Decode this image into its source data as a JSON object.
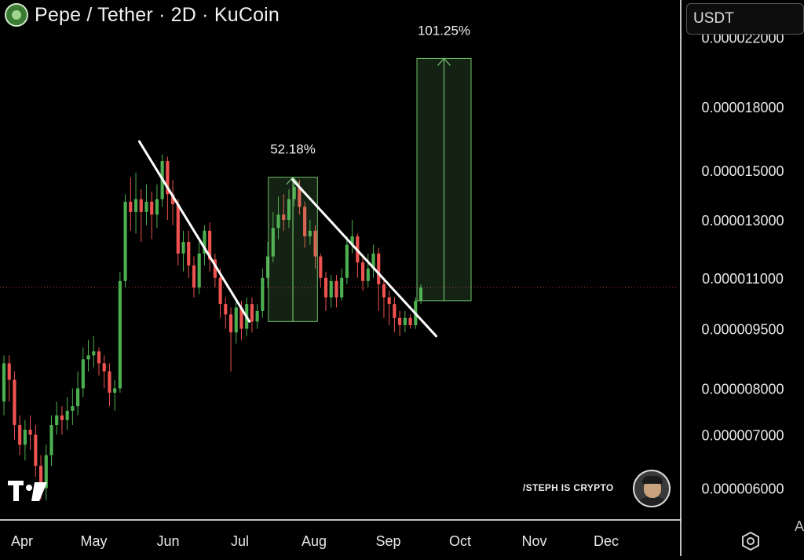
{
  "header": {
    "title": "Pepe / Tether · 2D · KuCoin",
    "logo_icon": "pepe-coin-icon"
  },
  "currency_selector": {
    "value": "USDT"
  },
  "watermark": {
    "credit": "/STEPH IS CRYPTO",
    "avatar_icon": "author-avatar-icon",
    "platform_logo": "tradingview-logo-icon"
  },
  "settings_icon": "hexagon-settings-icon",
  "cutoff_text": "A",
  "chart_data": {
    "type": "candlestick",
    "y_scale": "log",
    "ylim": [
      5.5e-06,
      2.45e-05
    ],
    "y_ticks": [
      "0.000022000",
      "0.000018000",
      "0.000015000",
      "0.000013000",
      "0.000011000",
      "0.000009500",
      "0.000008000",
      "0.000007000",
      "0.000006000"
    ],
    "x_ticks": [
      "Apr",
      "May",
      "Jun",
      "Jul",
      "Aug",
      "Sep",
      "Oct",
      "Nov",
      "Dec"
    ],
    "current_price": 1.07e-05,
    "colors": {
      "up": "#4caf50",
      "down": "#ef5350",
      "background": "#000000",
      "trendline": "#ffffff",
      "measure": "#6fbf6a",
      "price_line": "#c0392b"
    },
    "candles": [
      [
        7.7e-06,
        8.6e-06,
        7.4e-06,
        8.8e-06
      ],
      [
        8.6e-06,
        8.2e-06,
        7.7e-06,
        8.8e-06
      ],
      [
        8.2e-06,
        7.2e-06,
        6.9e-06,
        8.4e-06
      ],
      [
        7.2e-06,
        6.8e-06,
        6.6e-06,
        7.4e-06
      ],
      [
        6.8e-06,
        7.1e-06,
        6.5e-06,
        7.3e-06
      ],
      [
        7.1e-06,
        7e-06,
        6.7e-06,
        7.4e-06
      ],
      [
        7e-06,
        6.4e-06,
        6.2e-06,
        7.2e-06
      ],
      [
        6.4e-06,
        6e-06,
        5.8e-06,
        6.6e-06
      ],
      [
        6e-06,
        6.6e-06,
        5.8e-06,
        6.8e-06
      ],
      [
        6.6e-06,
        7.2e-06,
        6.4e-06,
        7.4e-06
      ],
      [
        7.2e-06,
        7.4e-06,
        7e-06,
        7.7e-06
      ],
      [
        7.4e-06,
        7.3e-06,
        7e-06,
        7.6e-06
      ],
      [
        7.3e-06,
        7.5e-06,
        7.1e-06,
        7.8e-06
      ],
      [
        7.5e-06,
        7.6e-06,
        7.2e-06,
        8e-06
      ],
      [
        7.6e-06,
        8e-06,
        7.4e-06,
        8.4e-06
      ],
      [
        8e-06,
        8.7e-06,
        7.8e-06,
        9e-06
      ],
      [
        8.7e-06,
        8.8e-06,
        8.4e-06,
        9.2e-06
      ],
      [
        8.8e-06,
        8.9e-06,
        8.5e-06,
        9.3e-06
      ],
      [
        8.9e-06,
        8.6e-06,
        8.3e-06,
        9e-06
      ],
      [
        8.6e-06,
        8.4e-06,
        8e-06,
        8.8e-06
      ],
      [
        8.4e-06,
        7.9e-06,
        7.6e-06,
        8.6e-06
      ],
      [
        7.9e-06,
        8e-06,
        7.5e-06,
        8.2e-06
      ],
      [
        8e-06,
        1.09e-05,
        7.9e-06,
        1.12e-05
      ],
      [
        1.09e-05,
        1.37e-05,
        1.07e-05,
        1.4e-05
      ],
      [
        1.37e-05,
        1.33e-05,
        1.26e-05,
        1.47e-05
      ],
      [
        1.33e-05,
        1.38e-05,
        1.25e-05,
        1.49e-05
      ],
      [
        1.38e-05,
        1.33e-05,
        1.22e-05,
        1.42e-05
      ],
      [
        1.33e-05,
        1.37e-05,
        1.28e-05,
        1.44e-05
      ],
      [
        1.37e-05,
        1.32e-05,
        1.23e-05,
        1.41e-05
      ],
      [
        1.32e-05,
        1.38e-05,
        1.27e-05,
        1.44e-05
      ],
      [
        1.38e-05,
        1.54e-05,
        1.35e-05,
        1.57e-05
      ],
      [
        1.54e-05,
        1.4e-05,
        1.3e-05,
        1.56e-05
      ],
      [
        1.4e-05,
        1.36e-05,
        1.28e-05,
        1.46e-05
      ],
      [
        1.36e-05,
        1.18e-05,
        1.14e-05,
        1.38e-05
      ],
      [
        1.18e-05,
        1.22e-05,
        1.12e-05,
        1.26e-05
      ],
      [
        1.22e-05,
        1.14e-05,
        1.1e-05,
        1.26e-05
      ],
      [
        1.14e-05,
        1.07e-05,
        1.04e-05,
        1.17e-05
      ],
      [
        1.07e-05,
        1.18e-05,
        1.05e-05,
        1.22e-05
      ],
      [
        1.18e-05,
        1.26e-05,
        1.14e-05,
        1.28e-05
      ],
      [
        1.26e-05,
        1.16e-05,
        1.12e-05,
        1.29e-05
      ],
      [
        1.16e-05,
        1.1e-05,
        1.07e-05,
        1.18e-05
      ],
      [
        1.1e-05,
        1.02e-05,
        9.8e-06,
        1.13e-05
      ],
      [
        1.02e-05,
        9.9e-06,
        9.5e-06,
        1.04e-05
      ],
      [
        9.9e-06,
        9.4e-06,
        8.4e-06,
        1.01e-05
      ],
      [
        9.4e-06,
        1.01e-05,
        9.1e-06,
        1.03e-05
      ],
      [
        1.01e-05,
        9.5e-06,
        9.2e-06,
        1.03e-05
      ],
      [
        9.5e-06,
        1.02e-05,
        9.3e-06,
        1.04e-05
      ],
      [
        1.02e-05,
        9.7e-06,
        9.4e-06,
        1.04e-05
      ],
      [
        9.7e-06,
        1e-05,
        9.5e-06,
        1.02e-05
      ],
      [
        1e-05,
        1.1e-05,
        9.8e-06,
        1.13e-05
      ],
      [
        1.1e-05,
        1.17e-05,
        1.07e-05,
        1.22e-05
      ],
      [
        1.17e-05,
        1.27e-05,
        1.15e-05,
        1.33e-05
      ],
      [
        1.27e-05,
        1.32e-05,
        1.23e-05,
        1.39e-05
      ],
      [
        1.32e-05,
        1.3e-05,
        1.26e-05,
        1.4e-05
      ],
      [
        1.3e-05,
        1.38e-05,
        1.27e-05,
        1.42e-05
      ],
      [
        1.38e-05,
        1.43e-05,
        1.35e-05,
        1.47e-05
      ],
      [
        1.43e-05,
        1.35e-05,
        1.32e-05,
        1.46e-05
      ],
      [
        1.35e-05,
        1.24e-05,
        1.2e-05,
        1.37e-05
      ],
      [
        1.24e-05,
        1.26e-05,
        1.21e-05,
        1.3e-05
      ],
      [
        1.26e-05,
        1.17e-05,
        1.13e-05,
        1.28e-05
      ],
      [
        1.17e-05,
        1.1e-05,
        1.07e-05,
        1.18e-05
      ],
      [
        1.1e-05,
        1.04e-05,
        1e-05,
        1.12e-05
      ],
      [
        1.04e-05,
        1.09e-05,
        1.01e-05,
        1.11e-05
      ],
      [
        1.09e-05,
        1.04e-05,
        1.01e-05,
        1.11e-05
      ],
      [
        1.04e-05,
        1.1e-05,
        1.03e-05,
        1.13e-05
      ],
      [
        1.1e-05,
        1.21e-05,
        1.08e-05,
        1.24e-05
      ],
      [
        1.21e-05,
        1.24e-05,
        1.18e-05,
        1.3e-05
      ],
      [
        1.24e-05,
        1.15e-05,
        1.1e-05,
        1.25e-05
      ],
      [
        1.15e-05,
        1.09e-05,
        1.06e-05,
        1.17e-05
      ],
      [
        1.09e-05,
        1.13e-05,
        1.07e-05,
        1.18e-05
      ],
      [
        1.13e-05,
        1.18e-05,
        1.1e-05,
        1.21e-05
      ],
      [
        1.18e-05,
        1.08e-05,
        1e-05,
        1.2e-05
      ],
      [
        1.08e-05,
        1.04e-05,
        9.8e-06,
        1.1e-05
      ],
      [
        1.04e-05,
        1.02e-05,
        9.6e-06,
        1.06e-05
      ],
      [
        1.02e-05,
        9.8e-06,
        9.4e-06,
        1.04e-05
      ],
      [
        9.8e-06,
        9.6e-06,
        9.3e-06,
        1e-05
      ],
      [
        9.6e-06,
        9.8e-06,
        9.4e-06,
        1e-05
      ],
      [
        9.8e-06,
        9.6e-06,
        9.5e-06,
        9.9e-06
      ],
      [
        9.6e-06,
        1.03e-05,
        9.5e-06,
        1.04e-05
      ],
      [
        1.03e-05,
        1.07e-05,
        1.02e-05,
        1.08e-05
      ]
    ],
    "trendlines": [
      {
        "from": [
          "May 20",
          1.63e-05
        ],
        "to": [
          "Jul 5",
          9.7e-06
        ]
      },
      {
        "from": [
          "Jul 23",
          1.46e-05
        ],
        "to": [
          "Sep 21",
          9.3e-06
        ]
      }
    ],
    "measures": [
      {
        "label": "52.18%",
        "from_price": 9.7e-06,
        "to_price": 1.47e-05
      },
      {
        "label": "101.25%",
        "from_price": 1.03e-05,
        "to_price": 2.07e-05
      }
    ]
  }
}
